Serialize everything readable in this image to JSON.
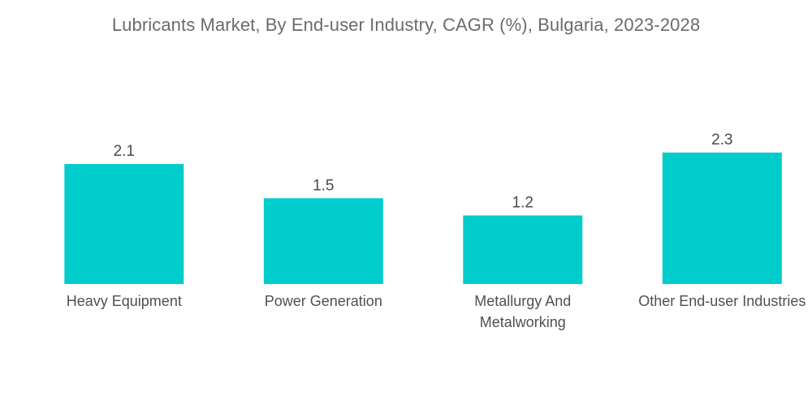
{
  "chart_data": {
    "type": "bar",
    "title": "Lubricants Market, By End-user Industry, CAGR (%), Bulgaria, 2023-2028",
    "categories": [
      [
        "Heavy Equipment"
      ],
      [
        "Power Generation"
      ],
      [
        "Metallurgy And",
        "Metalworking"
      ],
      [
        "Other End-user Industries"
      ]
    ],
    "values": [
      2.1,
      1.5,
      1.2,
      2.3
    ],
    "value_labels": [
      "2.1",
      "1.5",
      "1.2",
      "2.3"
    ],
    "xlabel": "",
    "ylabel": "",
    "ylim": [
      0,
      2.3
    ],
    "grid": false,
    "legend": "none",
    "bar_color": "#00cccc"
  }
}
